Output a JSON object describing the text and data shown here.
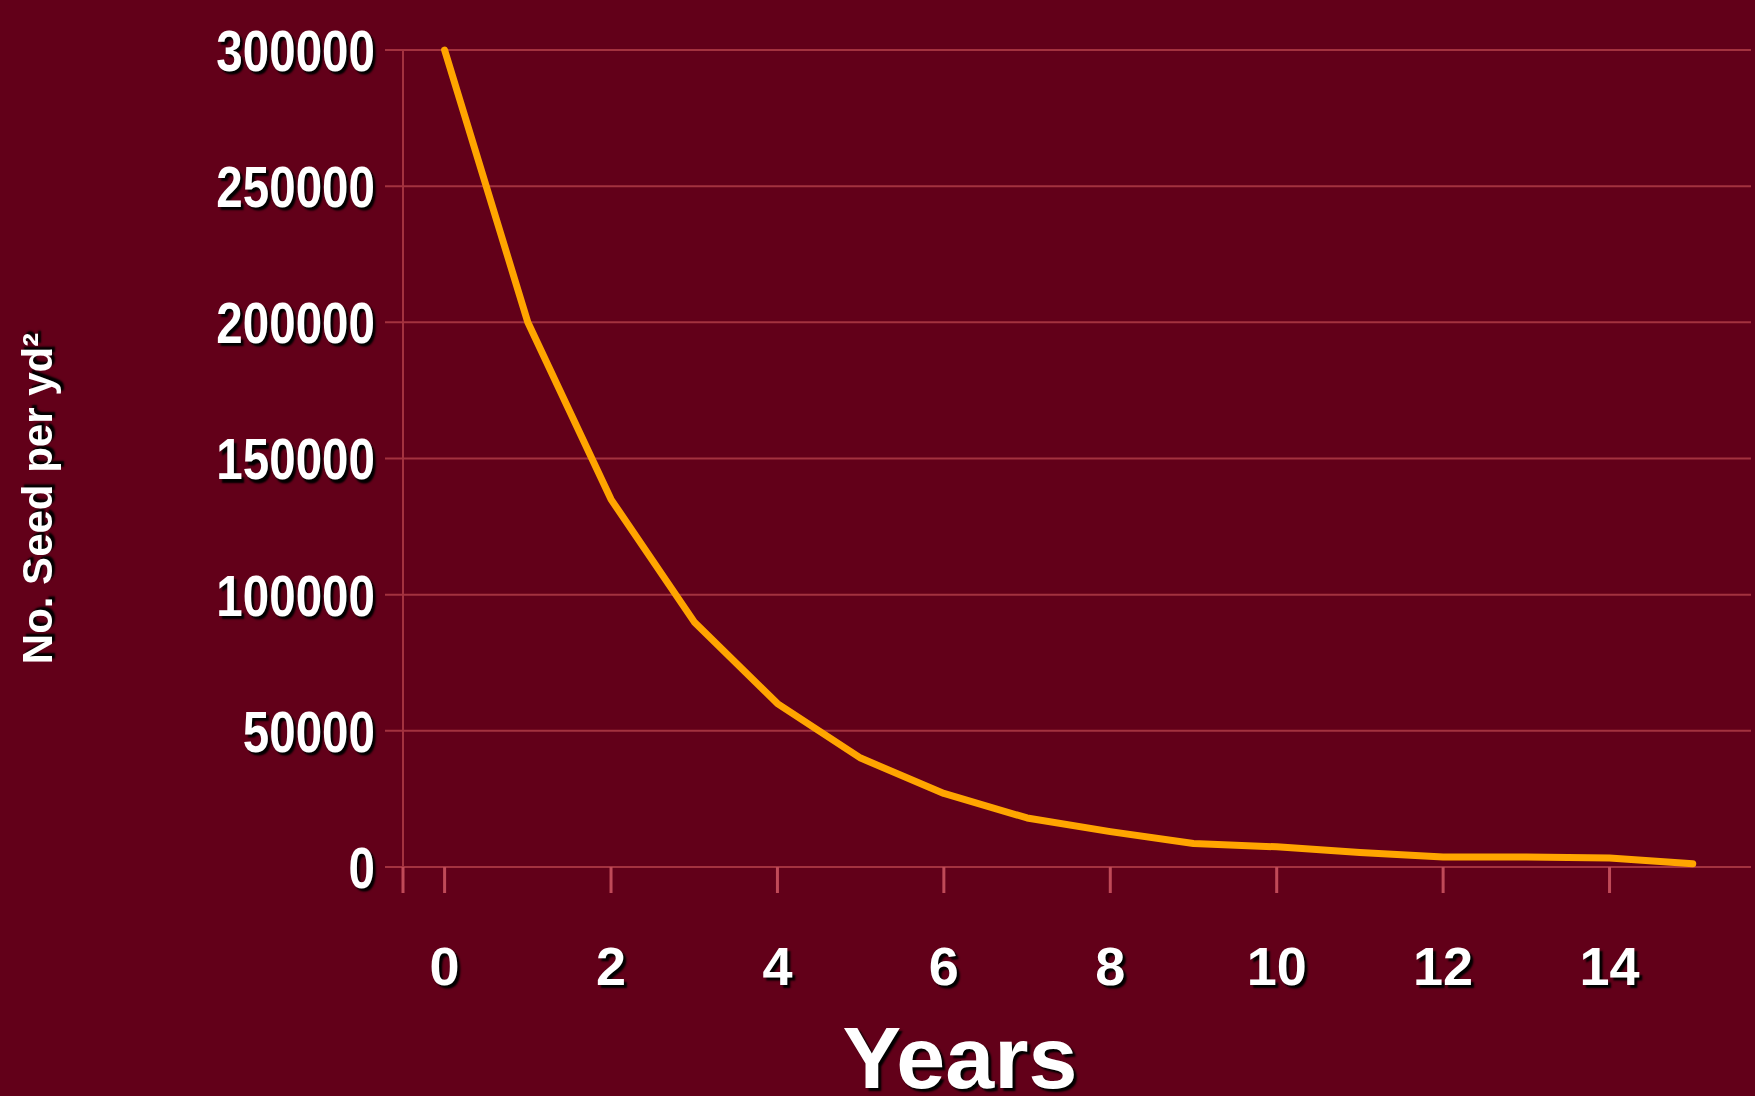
{
  "chart_data": {
    "type": "line",
    "xlabel": "Years",
    "ylabel": "No. Seed per yd²",
    "x": [
      0,
      1,
      2,
      3,
      4,
      5,
      6,
      7,
      8,
      9,
      10,
      11,
      12,
      13,
      14,
      15
    ],
    "series": [
      {
        "color": "#ffa500",
        "values": [
          300000,
          200000,
          135000,
          90000,
          60000,
          40000,
          27000,
          18000,
          13000,
          8600,
          7400,
          5300,
          3700,
          3700,
          3300,
          1200
        ]
      }
    ],
    "xlim": [
      -0.5,
      15.7
    ],
    "xticks": [
      {
        "value": -0.5,
        "label": null
      },
      0,
      2,
      4,
      6,
      8,
      10,
      12,
      14
    ],
    "ylim": [
      0,
      300000
    ],
    "yticks": [
      0,
      50000,
      100000,
      150000,
      200000,
      250000,
      300000
    ],
    "grid": "y",
    "marker": "none",
    "line_style": "solid"
  }
}
